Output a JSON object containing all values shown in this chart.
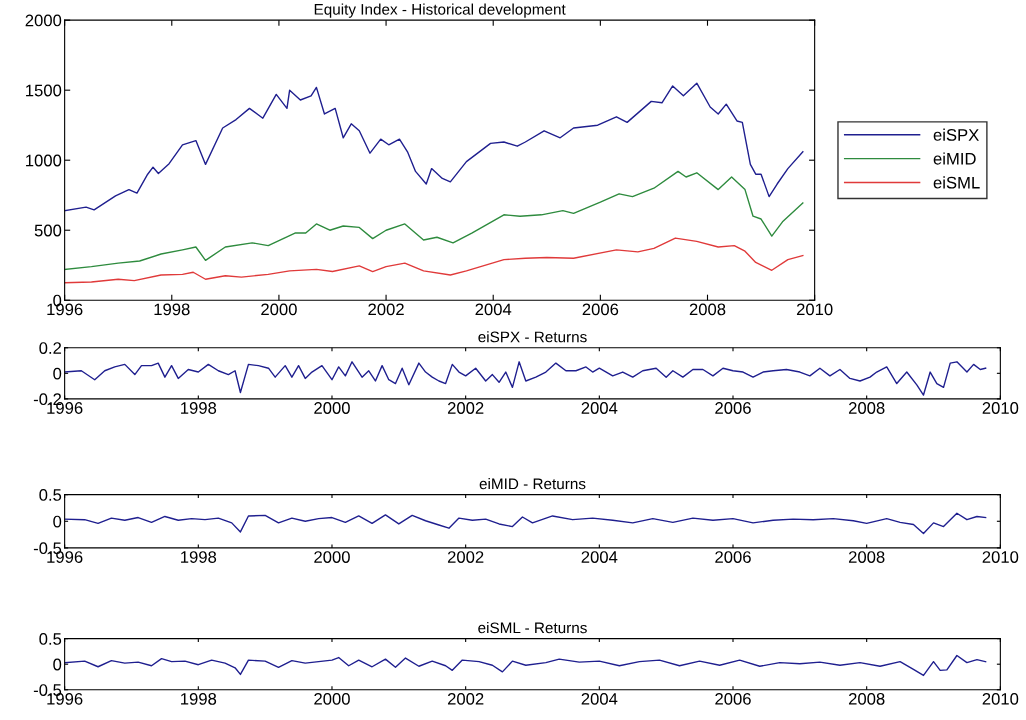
{
  "chart_data": [
    {
      "type": "line",
      "title": "Equity Index - Historical development",
      "xlim": [
        1996,
        2010
      ],
      "xticks": [
        1996,
        1998,
        2000,
        2002,
        2004,
        2006,
        2008,
        2010
      ],
      "ylim": [
        0,
        2000
      ],
      "yticks": [
        0,
        500,
        1000,
        1500,
        2000
      ],
      "grid": false,
      "legend": "right",
      "series": [
        {
          "name": "eiSPX",
          "color": "#1f1f8f",
          "x": [
            1996.0,
            1996.4,
            1996.55,
            1996.95,
            1997.2,
            1997.35,
            1997.55,
            1997.65,
            1997.75,
            1997.95,
            1998.2,
            1998.45,
            1998.63,
            1998.95,
            1999.2,
            1999.45,
            1999.7,
            1999.95,
            2000.15,
            2000.2,
            2000.4,
            2000.6,
            2000.7,
            2000.85,
            2001.05,
            2001.2,
            2001.35,
            2001.5,
            2001.7,
            2001.9,
            2002.05,
            2002.25,
            2002.4,
            2002.55,
            2002.75,
            2002.85,
            2003.05,
            2003.2,
            2003.5,
            2003.95,
            2004.2,
            2004.45,
            2004.6,
            2004.95,
            2005.25,
            2005.5,
            2005.95,
            2006.3,
            2006.5,
            2006.95,
            2007.15,
            2007.35,
            2007.55,
            2007.8,
            2008.05,
            2008.2,
            2008.35,
            2008.55,
            2008.65,
            2008.8,
            2008.9,
            2009.0,
            2009.15,
            2009.3,
            2009.5,
            2009.78
          ],
          "values": [
            640,
            665,
            645,
            745,
            790,
            765,
            900,
            950,
            905,
            975,
            1110,
            1140,
            970,
            1230,
            1290,
            1370,
            1300,
            1470,
            1370,
            1500,
            1430,
            1460,
            1520,
            1330,
            1370,
            1160,
            1260,
            1210,
            1050,
            1150,
            1110,
            1150,
            1060,
            920,
            830,
            940,
            870,
            845,
            990,
            1120,
            1130,
            1100,
            1130,
            1210,
            1160,
            1230,
            1250,
            1310,
            1270,
            1420,
            1410,
            1530,
            1460,
            1550,
            1380,
            1330,
            1400,
            1280,
            1270,
            970,
            900,
            900,
            740,
            830,
            940,
            1060
          ]
        },
        {
          "name": "eiMID",
          "color": "#2e8b3e",
          "x": [
            1996.0,
            1996.5,
            1997.0,
            1997.4,
            1997.8,
            1998.2,
            1998.45,
            1998.63,
            1999.0,
            1999.5,
            1999.8,
            2000.3,
            2000.5,
            2000.7,
            2000.95,
            2001.2,
            2001.5,
            2001.75,
            2002.0,
            2002.35,
            2002.7,
            2002.95,
            2003.25,
            2003.6,
            2004.2,
            2004.5,
            2004.9,
            2005.3,
            2005.5,
            2006.0,
            2006.35,
            2006.6,
            2007.0,
            2007.45,
            2007.6,
            2007.8,
            2008.2,
            2008.45,
            2008.7,
            2008.85,
            2009.0,
            2009.2,
            2009.4,
            2009.78
          ],
          "values": [
            220,
            240,
            265,
            280,
            330,
            360,
            380,
            285,
            380,
            410,
            390,
            480,
            480,
            545,
            500,
            530,
            520,
            440,
            500,
            545,
            430,
            450,
            410,
            480,
            610,
            600,
            610,
            640,
            620,
            700,
            760,
            740,
            800,
            920,
            880,
            910,
            790,
            880,
            790,
            600,
            580,
            458,
            560,
            694
          ]
        },
        {
          "name": "eiSML",
          "color": "#e03a3a",
          "x": [
            1996.0,
            1996.5,
            1997.0,
            1997.3,
            1997.8,
            1998.2,
            1998.4,
            1998.63,
            1999.0,
            1999.3,
            1999.8,
            2000.2,
            2000.7,
            2001.0,
            2001.5,
            2001.75,
            2002.0,
            2002.35,
            2002.7,
            2003.2,
            2003.5,
            2004.2,
            2004.6,
            2005.0,
            2005.5,
            2006.3,
            2006.7,
            2007.0,
            2007.4,
            2007.8,
            2008.2,
            2008.5,
            2008.7,
            2008.9,
            2009.2,
            2009.5,
            2009.78
          ],
          "values": [
            125,
            130,
            150,
            140,
            180,
            185,
            200,
            150,
            175,
            165,
            185,
            210,
            220,
            205,
            245,
            205,
            240,
            265,
            210,
            180,
            210,
            290,
            300,
            305,
            300,
            360,
            345,
            370,
            444,
            420,
            380,
            390,
            350,
            270,
            214,
            290,
            319
          ]
        }
      ]
    },
    {
      "type": "line",
      "title": "eiSPX - Returns",
      "xlim": [
        1996,
        2010
      ],
      "xticks": [
        1996,
        1998,
        2000,
        2002,
        2004,
        2006,
        2008,
        2010
      ],
      "ylim": [
        -0.2,
        0.2
      ],
      "yticks": [
        -0.2,
        0,
        0.2
      ],
      "grid": false,
      "series": [
        {
          "color": "#1f1f8f",
          "x": [
            1996.0,
            1996.25,
            1996.45,
            1996.6,
            1996.75,
            1996.9,
            1997.05,
            1997.15,
            1997.3,
            1997.4,
            1997.5,
            1997.6,
            1997.7,
            1997.85,
            1998.0,
            1998.15,
            1998.3,
            1998.45,
            1998.55,
            1998.63,
            1998.75,
            1998.9,
            1999.05,
            1999.15,
            1999.3,
            1999.4,
            1999.5,
            1999.6,
            1999.7,
            1999.85,
            2000.0,
            2000.1,
            2000.2,
            2000.3,
            2000.45,
            2000.55,
            2000.65,
            2000.75,
            2000.85,
            2000.95,
            2001.05,
            2001.15,
            2001.3,
            2001.4,
            2001.5,
            2001.6,
            2001.7,
            2001.8,
            2001.9,
            2002.0,
            2002.15,
            2002.3,
            2002.4,
            2002.5,
            2002.6,
            2002.7,
            2002.8,
            2002.9,
            2003.05,
            2003.2,
            2003.35,
            2003.5,
            2003.65,
            2003.8,
            2003.9,
            2004.0,
            2004.2,
            2004.35,
            2004.5,
            2004.65,
            2004.85,
            2005.0,
            2005.1,
            2005.25,
            2005.4,
            2005.55,
            2005.7,
            2005.85,
            2006.0,
            2006.15,
            2006.3,
            2006.45,
            2006.6,
            2006.8,
            2007.0,
            2007.15,
            2007.3,
            2007.45,
            2007.6,
            2007.75,
            2007.9,
            2008.05,
            2008.15,
            2008.3,
            2008.45,
            2008.6,
            2008.75,
            2008.85,
            2008.95,
            2009.05,
            2009.15,
            2009.25,
            2009.35,
            2009.5,
            2009.6,
            2009.7,
            2009.78
          ],
          "values": [
            0.01,
            0.02,
            -0.05,
            0.02,
            0.05,
            0.07,
            -0.01,
            0.06,
            0.06,
            0.08,
            -0.03,
            0.06,
            -0.04,
            0.03,
            0.01,
            0.07,
            0.02,
            -0.01,
            0.02,
            -0.15,
            0.07,
            0.06,
            0.04,
            -0.03,
            0.06,
            -0.03,
            0.06,
            -0.04,
            0.01,
            0.06,
            -0.05,
            0.05,
            -0.02,
            0.09,
            -0.03,
            0.02,
            -0.06,
            0.06,
            -0.05,
            -0.08,
            0.04,
            -0.09,
            0.08,
            0.01,
            -0.03,
            -0.06,
            -0.08,
            0.07,
            0.01,
            -0.02,
            0.04,
            -0.06,
            -0.01,
            -0.07,
            0.01,
            -0.11,
            0.09,
            -0.06,
            -0.03,
            0.01,
            0.08,
            0.02,
            0.02,
            0.05,
            0.01,
            0.04,
            -0.02,
            0.01,
            -0.03,
            0.02,
            0.04,
            -0.03,
            0.02,
            -0.03,
            0.03,
            0.03,
            -0.02,
            0.04,
            0.02,
            0.01,
            -0.03,
            0.01,
            0.02,
            0.03,
            0.01,
            -0.02,
            0.04,
            -0.02,
            0.03,
            -0.04,
            -0.06,
            -0.03,
            0.01,
            0.05,
            -0.08,
            0.01,
            -0.09,
            -0.17,
            0.01,
            -0.08,
            -0.11,
            0.08,
            0.09,
            0.01,
            0.07,
            0.03,
            0.04
          ]
        }
      ]
    },
    {
      "type": "line",
      "title": "eiMID - Returns",
      "xlim": [
        1996,
        2010
      ],
      "xticks": [
        1996,
        1998,
        2000,
        2002,
        2004,
        2006,
        2008,
        2010
      ],
      "ylim": [
        -0.5,
        0.5
      ],
      "yticks": [
        -0.5,
        0,
        0.5
      ],
      "grid": false,
      "series": [
        {
          "color": "#1f1f8f",
          "x": [
            1996.0,
            1996.3,
            1996.5,
            1996.7,
            1996.9,
            1997.1,
            1997.3,
            1997.5,
            1997.7,
            1997.9,
            1998.1,
            1998.3,
            1998.5,
            1998.63,
            1998.75,
            1999.0,
            1999.2,
            1999.4,
            1999.6,
            1999.8,
            2000.0,
            2000.2,
            2000.4,
            2000.6,
            2000.8,
            2001.0,
            2001.2,
            2001.4,
            2001.6,
            2001.75,
            2001.9,
            2002.1,
            2002.3,
            2002.5,
            2002.7,
            2002.85,
            2003.0,
            2003.3,
            2003.6,
            2003.9,
            2004.2,
            2004.5,
            2004.8,
            2005.1,
            2005.4,
            2005.7,
            2006.0,
            2006.3,
            2006.6,
            2006.9,
            2007.2,
            2007.5,
            2007.8,
            2008.0,
            2008.3,
            2008.5,
            2008.7,
            2008.85,
            2009.0,
            2009.15,
            2009.35,
            2009.5,
            2009.65,
            2009.78
          ],
          "values": [
            0.04,
            0.03,
            -0.04,
            0.06,
            0.02,
            0.07,
            -0.02,
            0.09,
            0.02,
            0.05,
            0.03,
            0.06,
            -0.03,
            -0.2,
            0.1,
            0.11,
            -0.03,
            0.06,
            0.0,
            0.05,
            0.07,
            -0.02,
            0.1,
            -0.04,
            0.12,
            -0.05,
            0.11,
            0.01,
            -0.07,
            -0.13,
            0.06,
            0.02,
            0.04,
            -0.05,
            -0.1,
            0.08,
            -0.03,
            0.1,
            0.03,
            0.06,
            0.02,
            -0.03,
            0.05,
            -0.02,
            0.06,
            0.02,
            0.05,
            -0.03,
            0.02,
            0.04,
            0.03,
            0.05,
            0.01,
            -0.04,
            0.05,
            -0.02,
            -0.06,
            -0.23,
            -0.03,
            -0.1,
            0.15,
            0.03,
            0.09,
            0.07
          ]
        }
      ]
    },
    {
      "type": "line",
      "title": "eiSML - Returns",
      "xlim": [
        1996,
        2010
      ],
      "xticks": [
        1996,
        1998,
        2000,
        2002,
        2004,
        2006,
        2008,
        2010
      ],
      "ylim": [
        -0.5,
        0.5
      ],
      "yticks": [
        -0.5,
        0,
        0.5
      ],
      "grid": false,
      "series": [
        {
          "color": "#1f1f8f",
          "x": [
            1996.0,
            1996.3,
            1996.5,
            1996.7,
            1996.9,
            1997.1,
            1997.3,
            1997.45,
            1997.6,
            1997.8,
            1998.0,
            1998.2,
            1998.4,
            1998.55,
            1998.63,
            1998.75,
            1999.0,
            1999.2,
            1999.4,
            1999.6,
            1999.8,
            2000.0,
            2000.1,
            2000.25,
            2000.4,
            2000.6,
            2000.8,
            2000.95,
            2001.1,
            2001.3,
            2001.5,
            2001.7,
            2001.8,
            2001.95,
            2002.2,
            2002.4,
            2002.55,
            2002.7,
            2002.9,
            2003.2,
            2003.4,
            2003.7,
            2004.0,
            2004.3,
            2004.6,
            2004.9,
            2005.2,
            2005.5,
            2005.8,
            2006.1,
            2006.4,
            2006.7,
            2007.0,
            2007.3,
            2007.6,
            2007.9,
            2008.2,
            2008.5,
            2008.7,
            2008.85,
            2009.0,
            2009.1,
            2009.2,
            2009.35,
            2009.5,
            2009.65,
            2009.78
          ],
          "values": [
            0.03,
            0.06,
            -0.05,
            0.07,
            0.02,
            0.04,
            -0.03,
            0.11,
            0.05,
            0.06,
            -0.01,
            0.08,
            0.02,
            -0.07,
            -0.2,
            0.08,
            0.06,
            -0.06,
            0.07,
            0.02,
            0.05,
            0.08,
            0.13,
            -0.03,
            0.08,
            -0.05,
            0.1,
            -0.06,
            0.12,
            -0.04,
            0.06,
            -0.03,
            -0.12,
            0.08,
            0.05,
            -0.02,
            -0.15,
            0.06,
            -0.02,
            0.03,
            0.1,
            0.04,
            0.06,
            -0.03,
            0.05,
            0.08,
            -0.03,
            0.06,
            -0.02,
            0.08,
            -0.04,
            0.03,
            0.01,
            0.04,
            -0.02,
            0.03,
            -0.04,
            0.05,
            -0.1,
            -0.22,
            0.05,
            -0.12,
            -0.11,
            0.17,
            0.03,
            0.09,
            0.05
          ]
        }
      ]
    }
  ]
}
